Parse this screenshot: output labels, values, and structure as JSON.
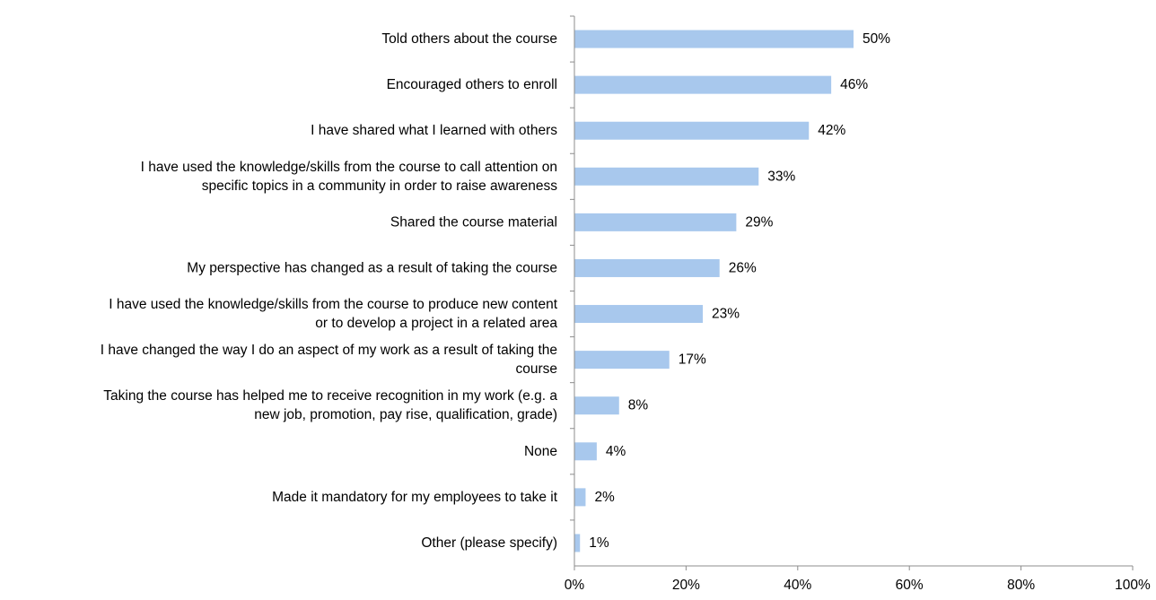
{
  "chart_data": {
    "type": "bar",
    "orientation": "horizontal",
    "categories": [
      [
        "Told others about the course"
      ],
      [
        "Encouraged others to enroll"
      ],
      [
        "I have shared what I learned with others"
      ],
      [
        "I have used the knowledge/skills from the course to call attention on",
        "specific topics in a community in order to raise awareness"
      ],
      [
        "Shared the course material"
      ],
      [
        "My perspective has changed as a result of taking the course"
      ],
      [
        "I have used the knowledge/skills from the course to produce new content",
        "or to develop a project in a related area"
      ],
      [
        "I have changed the way I do an aspect of my work as a result of taking the",
        "course"
      ],
      [
        "Taking the course has helped me to receive recognition in my work (e.g. a",
        "new job, promotion, pay rise, qualification, grade)"
      ],
      [
        "None"
      ],
      [
        "Made it mandatory for my employees to take it"
      ],
      [
        "Other (please specify)"
      ]
    ],
    "values": [
      50,
      46,
      42,
      33,
      29,
      26,
      23,
      17,
      8,
      4,
      2,
      1
    ],
    "value_labels": [
      "50%",
      "46%",
      "42%",
      "33%",
      "29%",
      "26%",
      "23%",
      "17%",
      "8%",
      "4%",
      "2%",
      "1%"
    ],
    "xlim": [
      0,
      100
    ],
    "x_ticks": [
      0,
      20,
      40,
      60,
      80,
      100
    ],
    "x_tick_labels": [
      "0%",
      "20%",
      "40%",
      "60%",
      "80%",
      "100%"
    ],
    "grid": false,
    "legend": "none",
    "title": "",
    "xlabel": "",
    "ylabel": "",
    "colors": {
      "bar": "#a8c8ed",
      "axis": "#8c8c8c",
      "text": "#000000"
    }
  }
}
